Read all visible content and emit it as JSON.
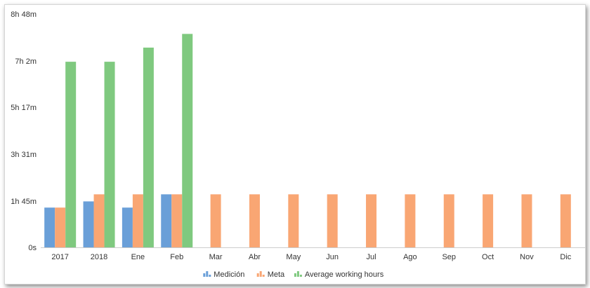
{
  "chart_data": {
    "type": "bar",
    "title": "",
    "xlabel": "",
    "ylabel": "",
    "categories": [
      "2017",
      "2018",
      "Ene",
      "Feb",
      "Mar",
      "Abr",
      "May",
      "Jun",
      "Jul",
      "Ago",
      "Sep",
      "Oct",
      "Nov",
      "Dic"
    ],
    "y_ticks": [
      {
        "value": 0,
        "label": "0s"
      },
      {
        "value": 105,
        "label": "1h 45m"
      },
      {
        "value": 211,
        "label": "3h 31m"
      },
      {
        "value": 317,
        "label": "5h 17m"
      },
      {
        "value": 422,
        "label": "7h 2m"
      },
      {
        "value": 528,
        "label": "8h 48m"
      }
    ],
    "ylim": [
      0,
      528
    ],
    "y_unit": "minutes",
    "grid": false,
    "legend_position": "bottom-center",
    "series": [
      {
        "name": "Medición",
        "color": "#6a9fd8",
        "values": [
          90,
          104,
          90,
          120,
          null,
          null,
          null,
          null,
          null,
          null,
          null,
          null,
          null,
          null
        ]
      },
      {
        "name": "Meta",
        "color": "#f9a673",
        "values": [
          90,
          120,
          120,
          120,
          120,
          120,
          120,
          120,
          120,
          120,
          120,
          120,
          120,
          120
        ]
      },
      {
        "name": "Average working hours",
        "color": "#7fc97f",
        "values": [
          420,
          420,
          452,
          483,
          null,
          null,
          null,
          null,
          null,
          null,
          null,
          null,
          null,
          null
        ]
      }
    ]
  }
}
